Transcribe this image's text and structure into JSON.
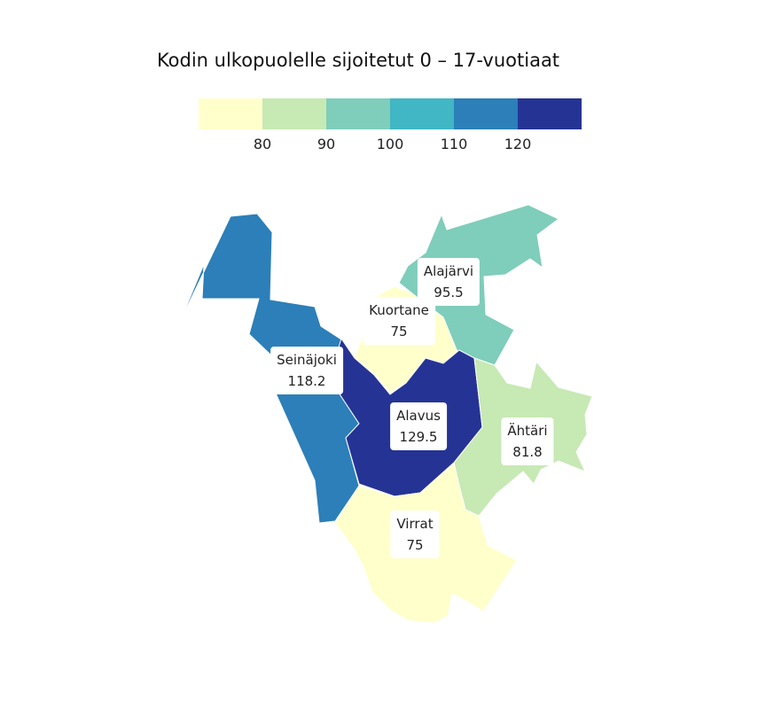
{
  "title": "Kodin ulkopuolelle sijoitetut 0 – 17-vuotiaat",
  "legend": {
    "colors": [
      "#ffffcc",
      "#c7e9b4",
      "#7fcdbb",
      "#41b6c4",
      "#2c7fb8",
      "#253494"
    ],
    "ticks": [
      "80",
      "90",
      "100",
      "110",
      "120"
    ]
  },
  "chart_data": {
    "type": "choropleth",
    "title": "Kodin ulkopuolelle sijoitetut 0 – 17-vuotiaat",
    "breaks": [
      80,
      90,
      100,
      110,
      120
    ],
    "regions": [
      {
        "name": "Alajärvi",
        "value": "95.5",
        "color": "#7fcdbb"
      },
      {
        "name": "Kuortane",
        "value": "75",
        "color": "#ffffcc"
      },
      {
        "name": "Seinäjoki",
        "value": "118.2",
        "color": "#2c7fb8"
      },
      {
        "name": "Alavus",
        "value": "129.5",
        "color": "#253494"
      },
      {
        "name": "Ähtäri",
        "value": "81.8",
        "color": "#c7e9b4"
      },
      {
        "name": "Virrat",
        "value": "75",
        "color": "#ffffcc"
      }
    ]
  }
}
